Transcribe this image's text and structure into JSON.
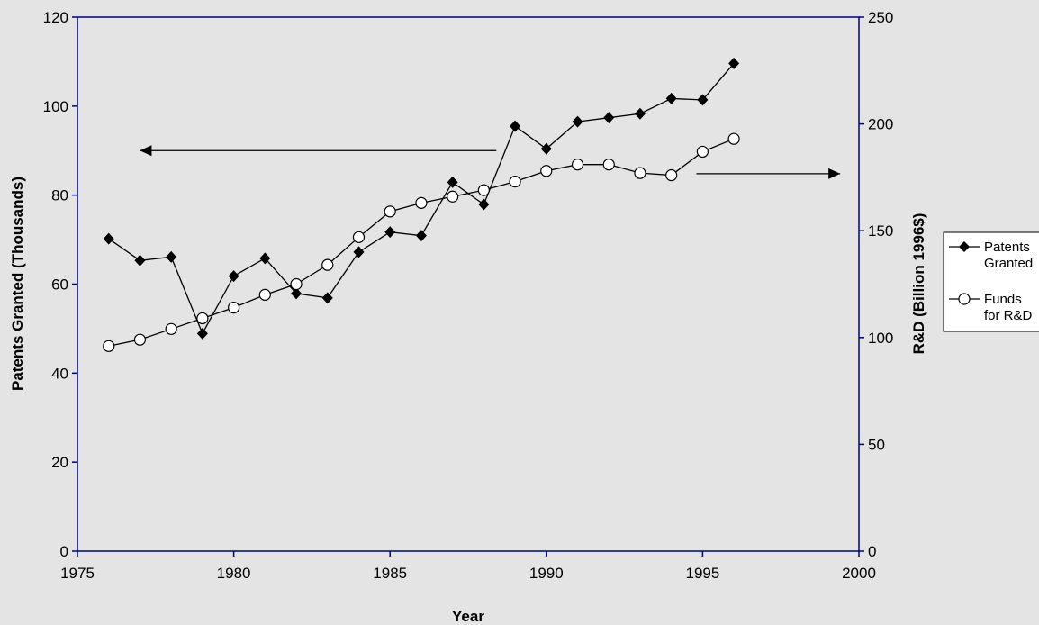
{
  "chart_data": {
    "type": "line",
    "xlabel": "Year",
    "ylabel_left": "Patents Granted (Thousands)",
    "ylabel_right": "R&D (Billion 1996$)",
    "xlim": [
      1975,
      2000
    ],
    "ylim_left": [
      0,
      120
    ],
    "ylim_right": [
      0,
      250
    ],
    "x_ticks": [
      "1975",
      "1980",
      "1985",
      "1990",
      "1995",
      "2000"
    ],
    "y_left_ticks": [
      "0",
      "20",
      "40",
      "60",
      "80",
      "100",
      "120"
    ],
    "y_right_ticks": [
      "0",
      "50",
      "100",
      "150",
      "200",
      "250"
    ],
    "grid": false,
    "legend_position": "right",
    "series": [
      {
        "name": "Patents Granted",
        "legend_lines": [
          "Patents",
          "Granted"
        ],
        "axis": "left",
        "marker": "diamond-filled",
        "color": "#000000",
        "x": [
          1976,
          1977,
          1978,
          1979,
          1980,
          1981,
          1982,
          1983,
          1984,
          1985,
          1986,
          1987,
          1988,
          1989,
          1990,
          1991,
          1992,
          1993,
          1994,
          1995,
          1996
        ],
        "values": [
          70.2,
          65.3,
          66.1,
          48.9,
          61.8,
          65.8,
          57.9,
          56.9,
          67.2,
          71.7,
          70.9,
          82.9,
          77.9,
          95.5,
          90.4,
          96.5,
          97.4,
          98.3,
          101.7,
          101.4,
          109.6
        ]
      },
      {
        "name": "Funds for R&D",
        "legend_lines": [
          "Funds",
          "for R&D"
        ],
        "axis": "right",
        "marker": "circle-open",
        "color": "#000000",
        "x": [
          1976,
          1977,
          1978,
          1979,
          1980,
          1981,
          1982,
          1983,
          1984,
          1985,
          1986,
          1987,
          1988,
          1989,
          1990,
          1991,
          1992,
          1993,
          1994,
          1995,
          1996
        ],
        "values": [
          96,
          99,
          104,
          109,
          114,
          120,
          125,
          134,
          147,
          159,
          163,
          166,
          169,
          173,
          178,
          181,
          181,
          177,
          176,
          187,
          193
        ]
      }
    ],
    "annotations": [
      {
        "type": "arrow",
        "direction": "left",
        "indicates_axis": "left",
        "x_from": 1988.4,
        "x_to": 1977.0,
        "y": 90
      },
      {
        "type": "arrow",
        "direction": "right",
        "indicates_axis": "right",
        "x_from": 1994.8,
        "x_to": 1999.4,
        "y": 176.7
      }
    ]
  },
  "colors": {
    "background": "#e4e4e4",
    "axis": "#000080",
    "series": "#000000"
  }
}
